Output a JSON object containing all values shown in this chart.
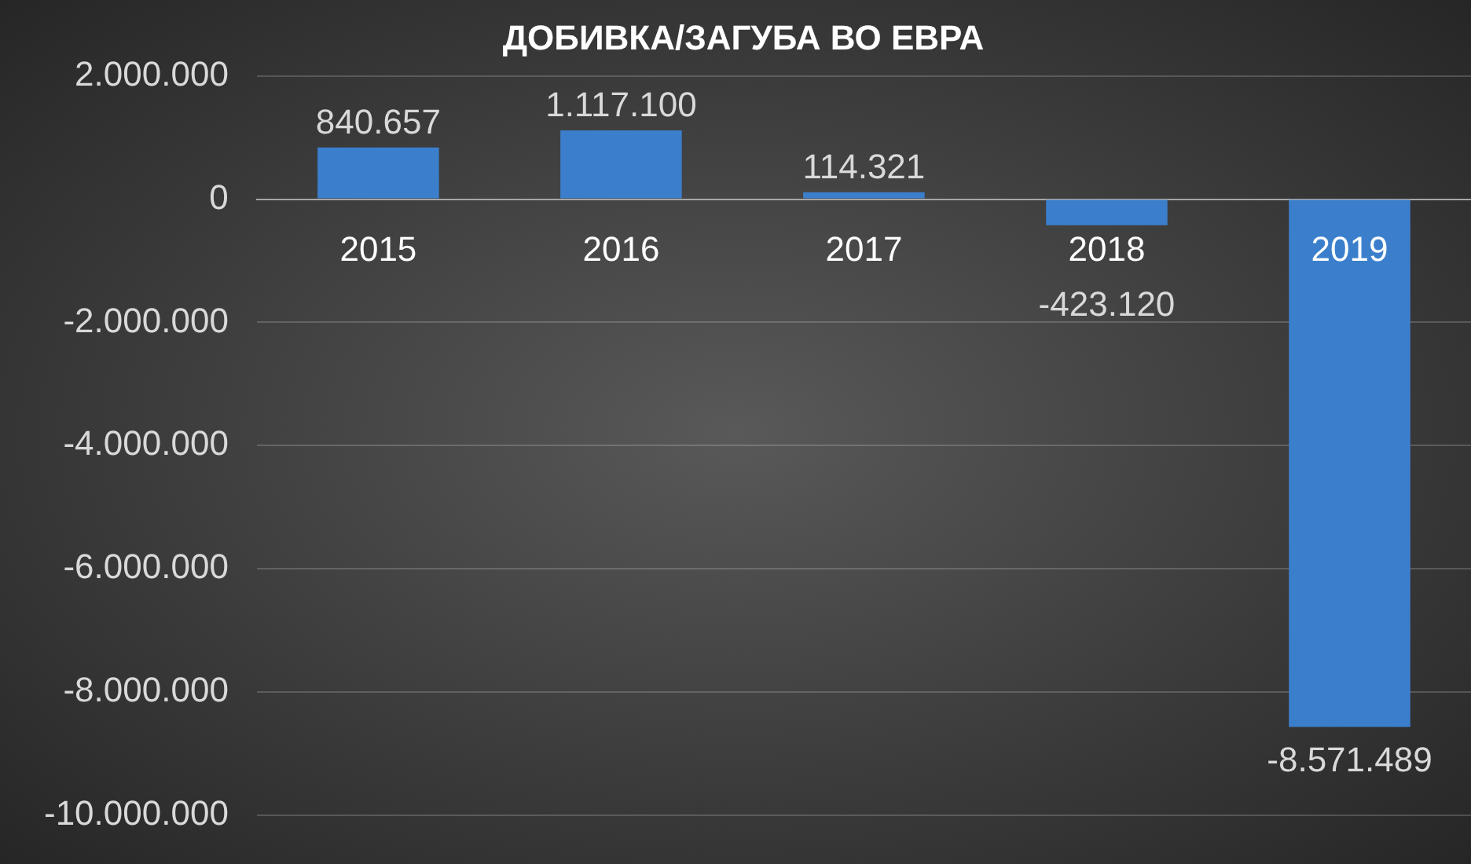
{
  "chart_data": {
    "type": "bar",
    "title": "ДОБИВКА/ЗАГУБА ВО ЕВРА",
    "categories": [
      "2015",
      "2016",
      "2017",
      "2018",
      "2019"
    ],
    "values": [
      840657,
      1117100,
      114321,
      -423120,
      -8571489
    ],
    "value_labels": [
      "840.657",
      "1.117.100",
      "114.321",
      "-423.120",
      "-8.571.489"
    ],
    "color": "#3b7fcc",
    "ylim": [
      -10000000,
      2000000
    ],
    "yticks": [
      {
        "value": -10000000,
        "label": "-10.000.000"
      },
      {
        "value": -8000000,
        "label": "-8.000.000"
      },
      {
        "value": -6000000,
        "label": "-6.000.000"
      },
      {
        "value": -4000000,
        "label": "-4.000.000"
      },
      {
        "value": -2000000,
        "label": "-2.000.000"
      },
      {
        "value": 0,
        "label": "0"
      },
      {
        "value": 2000000,
        "label": "2.000.000"
      }
    ],
    "grid": "y",
    "legend": false
  }
}
